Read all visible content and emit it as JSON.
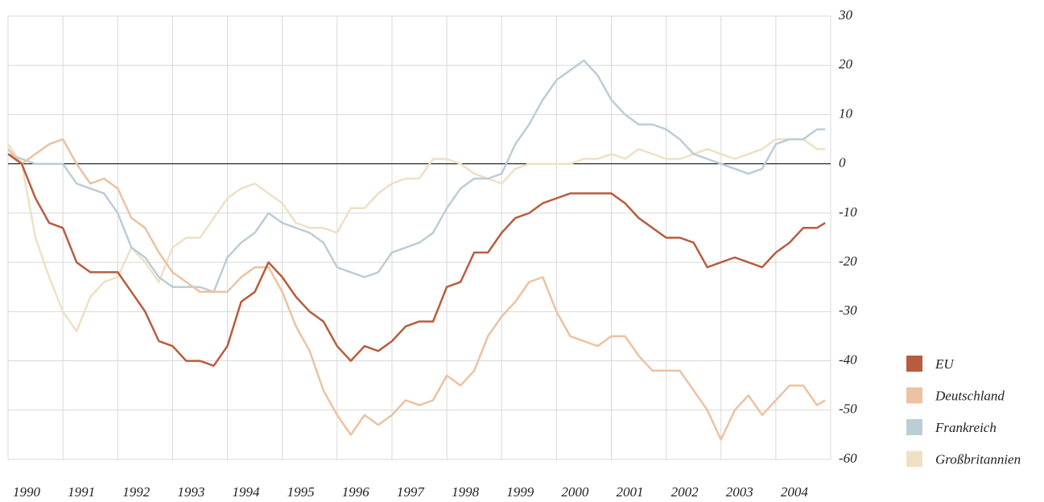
{
  "chart_data": {
    "type": "line",
    "x": [
      1990,
      1990.25,
      1990.5,
      1990.75,
      1991,
      1991.25,
      1991.5,
      1991.75,
      1992,
      1992.25,
      1992.5,
      1992.75,
      1993,
      1993.25,
      1993.5,
      1993.75,
      1994,
      1994.25,
      1994.5,
      1994.75,
      1995,
      1995.25,
      1995.5,
      1995.75,
      1996,
      1996.25,
      1996.5,
      1996.75,
      1997,
      1997.25,
      1997.5,
      1997.75,
      1998,
      1998.25,
      1998.5,
      1998.75,
      1999,
      1999.25,
      1999.5,
      1999.75,
      2000,
      2000.25,
      2000.5,
      2000.75,
      2001,
      2001.25,
      2001.5,
      2001.75,
      2002,
      2002.25,
      2002.5,
      2002.75,
      2003,
      2003.25,
      2003.5,
      2003.75,
      2004,
      2004.25,
      2004.5,
      2004.75,
      2004.9
    ],
    "series": [
      {
        "name": "Großbritannien",
        "color": "#efe0c4",
        "values": [
          4,
          0,
          -15,
          -23,
          -30,
          -34,
          -27,
          -24,
          -23,
          -17,
          -20,
          -24,
          -17,
          -15,
          -15,
          -11,
          -7,
          -5,
          -4,
          -6,
          -8,
          -12,
          -13,
          -13,
          -14,
          -9,
          -9,
          -6,
          -4,
          -3,
          -3,
          1,
          1,
          0,
          -2,
          -3,
          -4,
          -1,
          0,
          0,
          0,
          0,
          1,
          1,
          2,
          1,
          3,
          2,
          1,
          1,
          2,
          3,
          2,
          1,
          2,
          3,
          5,
          5,
          5,
          3,
          3
        ]
      },
      {
        "name": "Frankreich",
        "color": "#bccdd6",
        "values": [
          2,
          1,
          0,
          0,
          0,
          -4,
          -5,
          -6,
          -10,
          -17,
          -19,
          -23,
          -25,
          -25,
          -25,
          -26,
          -19,
          -16,
          -14,
          -10,
          -12,
          -13,
          -14,
          -16,
          -21,
          -22,
          -23,
          -22,
          -18,
          -17,
          -16,
          -14,
          -9,
          -5,
          -3,
          -3,
          -2,
          4,
          8,
          13,
          17,
          19,
          21,
          18,
          13,
          10,
          8,
          8,
          7,
          5,
          2,
          1,
          0,
          -1,
          -2,
          -1,
          4,
          5,
          5,
          7,
          7
        ]
      },
      {
        "name": "Deutschland",
        "color": "#ecc2a2",
        "values": [
          3,
          0,
          2,
          4,
          5,
          0,
          -4,
          -3,
          -5,
          -11,
          -13,
          -18,
          -22,
          -24,
          -26,
          -26,
          -26,
          -23,
          -21,
          -21,
          -26,
          -33,
          -38,
          -46,
          -51,
          -55,
          -51,
          -53,
          -51,
          -48,
          -49,
          -48,
          -43,
          -45,
          -42,
          -35,
          -31,
          -28,
          -24,
          -23,
          -30,
          -35,
          -36,
          -37,
          -35,
          -35,
          -39,
          -42,
          -42,
          -42,
          -46,
          -50,
          -56,
          -50,
          -47,
          -51,
          -48,
          -45,
          -45,
          -49,
          -48
        ]
      },
      {
        "name": "EU",
        "color": "#b85c3e",
        "values": [
          2,
          0,
          -7,
          -12,
          -13,
          -20,
          -22,
          -22,
          -22,
          -26,
          -30,
          -36,
          -37,
          -40,
          -40,
          -41,
          -37,
          -28,
          -26,
          -20,
          -23,
          -27,
          -30,
          -32,
          -37,
          -40,
          -37,
          -38,
          -36,
          -33,
          -32,
          -32,
          -25,
          -24,
          -18,
          -18,
          -14,
          -11,
          -10,
          -8,
          -7,
          -6,
          -6,
          -6,
          -6,
          -8,
          -11,
          -13,
          -15,
          -15,
          -16,
          -21,
          -20,
          -19,
          -20,
          -21,
          -18,
          -16,
          -13,
          -13,
          -12
        ]
      }
    ],
    "legend_order": [
      "EU",
      "Deutschland",
      "Frankreich",
      "Großbritannien"
    ],
    "xlim": [
      1990,
      2005
    ],
    "xticks": [
      1990,
      1991,
      1992,
      1993,
      1994,
      1995,
      1996,
      1997,
      1998,
      1999,
      2000,
      2001,
      2002,
      2003,
      2004
    ],
    "ylim": [
      -60,
      30
    ],
    "yticks": [
      -60,
      -50,
      -40,
      -30,
      -20,
      -10,
      0,
      10,
      20,
      30
    ],
    "grid": true,
    "legend": "bottom right"
  }
}
